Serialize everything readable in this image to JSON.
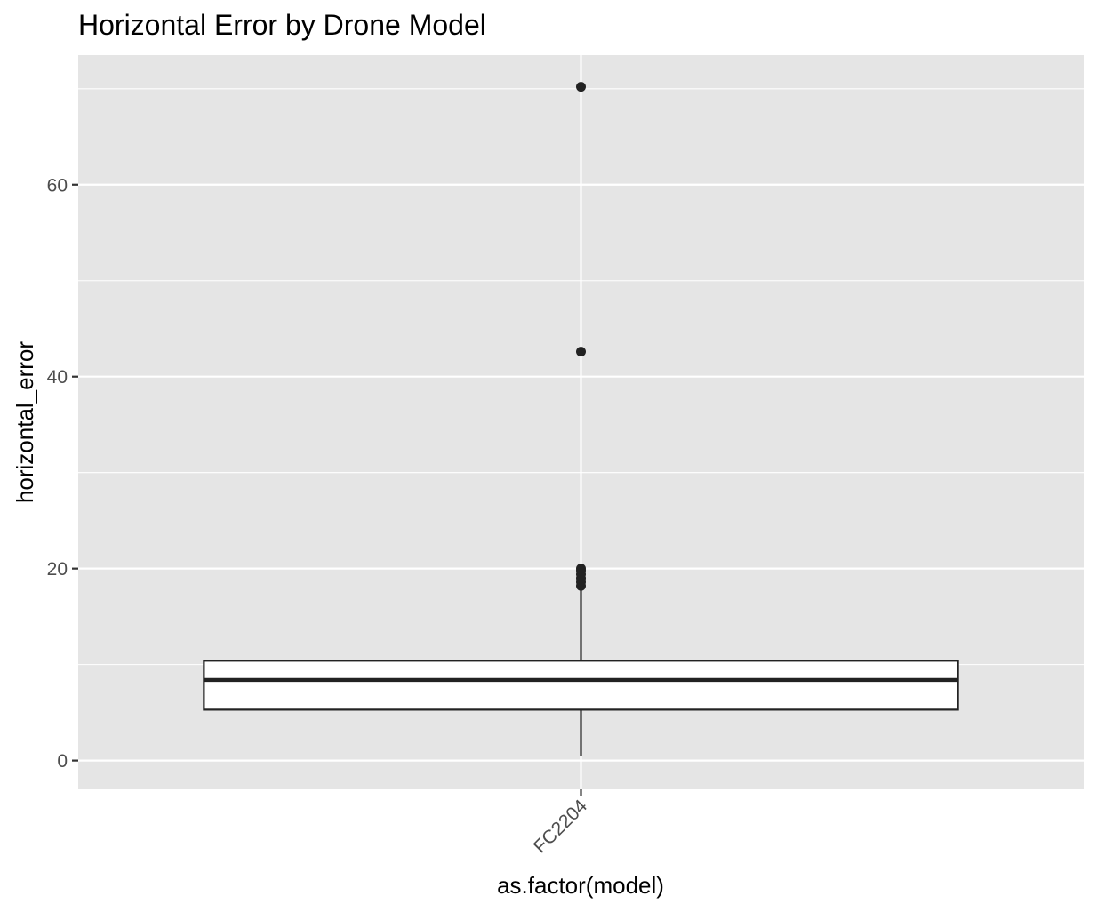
{
  "chart_data": {
    "type": "boxplot",
    "title": "Horizontal Error by Drone Model",
    "xlabel": "as.factor(model)",
    "ylabel": "horizontal_error",
    "categories": [
      "FC2204"
    ],
    "ylim": [
      -3,
      73.5
    ],
    "y_ticks": [
      0,
      20,
      40,
      60
    ],
    "y_minor_ticks": [
      10,
      30,
      50,
      70
    ],
    "x_tick_rotation_deg": 45,
    "grid": true,
    "legend": "none",
    "boxes": [
      {
        "category": "FC2204",
        "min": 0.5,
        "q1": 5.3,
        "median": 8.4,
        "q3": 10.4,
        "max": 18,
        "outliers": [
          18.2,
          18.6,
          19.0,
          19.4,
          19.8,
          20.0,
          42.6,
          70.2
        ]
      }
    ],
    "colors": {
      "panel_background": "#e5e5e5",
      "grid_line": "#ffffff",
      "box_fill": "#ffffff",
      "box_stroke": "#222222",
      "outlier": "#222222",
      "tick_label": "#4d4d4d",
      "axis_tick": "#333333"
    }
  }
}
